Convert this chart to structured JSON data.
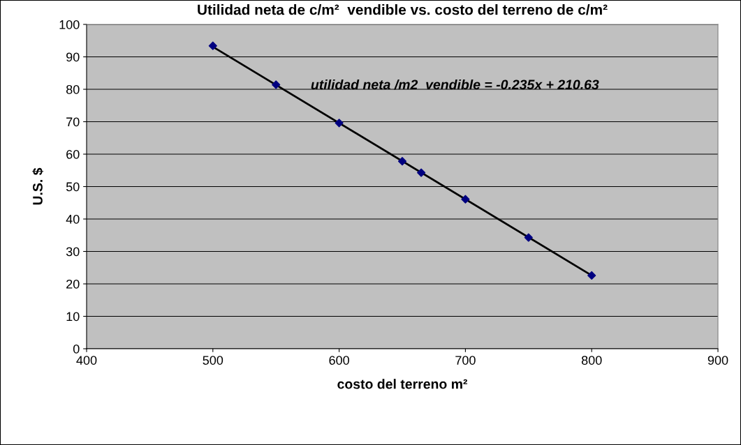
{
  "chart_data": {
    "type": "scatter",
    "title": "Utilidad neta de c/m²  vendible vs. costo del terreno de c/m²",
    "xlabel": "costo del terreno m²",
    "ylabel": "U.S. $",
    "annotations": [
      "utilidad neta /m2  vendible = -0.235x + 210.63"
    ],
    "x": [
      500,
      550,
      600,
      650,
      665,
      700,
      750,
      800
    ],
    "series": [
      {
        "color": "#000080",
        "marker": "diamond",
        "values": [
          93.4,
          81.4,
          69.6,
          57.8,
          54.3,
          46.1,
          34.3,
          22.6
        ]
      },
      {
        "type": "line",
        "color": "#000000",
        "marker": "none",
        "line_style": "solid",
        "x": [
          500,
          800
        ],
        "values": [
          93.1,
          22.6
        ]
      }
    ],
    "xlim": [
      400,
      900
    ],
    "xticks": [
      400,
      500,
      600,
      700,
      800,
      900
    ],
    "ylim": [
      0,
      100
    ],
    "yticks": [
      0,
      10,
      20,
      30,
      40,
      50,
      60,
      70,
      80,
      90,
      100
    ],
    "grid": "y",
    "legend": false
  }
}
